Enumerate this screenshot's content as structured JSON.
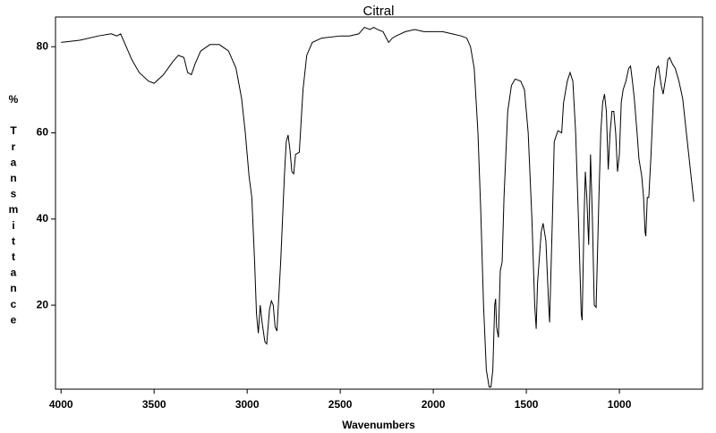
{
  "chart_data": {
    "type": "line",
    "title": "Citral",
    "xlabel": "Wavenumbers",
    "ylabel": "% Transmittance",
    "color": "#000000",
    "xlim": [
      4030,
      553
    ],
    "ylim": [
      0.5,
      86.9
    ],
    "xticks": [
      4000,
      3500,
      3000,
      2500,
      2000,
      1500,
      1000
    ],
    "yticks": [
      20,
      40,
      60,
      80
    ],
    "x": [
      4000,
      3900,
      3800,
      3730,
      3700,
      3680,
      3650,
      3620,
      3580,
      3530,
      3500,
      3450,
      3400,
      3370,
      3340,
      3320,
      3300,
      3280,
      3250,
      3200,
      3150,
      3100,
      3060,
      3030,
      3010,
      2990,
      2975,
      2960,
      2950,
      2940,
      2930,
      2920,
      2905,
      2895,
      2880,
      2870,
      2860,
      2850,
      2840,
      2820,
      2800,
      2790,
      2780,
      2770,
      2760,
      2750,
      2740,
      2720,
      2700,
      2680,
      2650,
      2600,
      2500,
      2450,
      2400,
      2370,
      2340,
      2320,
      2300,
      2270,
      2240,
      2220,
      2200,
      2150,
      2100,
      2050,
      2000,
      1950,
      1900,
      1850,
      1820,
      1800,
      1780,
      1760,
      1745,
      1730,
      1715,
      1700,
      1690,
      1680,
      1670,
      1665,
      1660,
      1650,
      1640,
      1630,
      1620,
      1600,
      1580,
      1560,
      1530,
      1510,
      1490,
      1470,
      1455,
      1447,
      1440,
      1420,
      1410,
      1395,
      1380,
      1375,
      1360,
      1350,
      1330,
      1310,
      1300,
      1280,
      1265,
      1250,
      1235,
      1220,
      1205,
      1200,
      1190,
      1183,
      1175,
      1165,
      1155,
      1145,
      1135,
      1125,
      1110,
      1100,
      1090,
      1080,
      1070,
      1060,
      1050,
      1040,
      1030,
      1020,
      1010,
      1000,
      990,
      980,
      965,
      950,
      940,
      930,
      920,
      905,
      895,
      880,
      870,
      862,
      858,
      850,
      842,
      830,
      815,
      800,
      790,
      775,
      765,
      750,
      740,
      730,
      715,
      700,
      680,
      660,
      640,
      620,
      600
    ],
    "values": [
      81,
      81.5,
      82.5,
      83,
      82.5,
      83,
      80,
      77,
      74,
      72,
      71.5,
      73.5,
      76.5,
      78,
      77.5,
      74,
      73.5,
      76,
      79,
      80.5,
      80.5,
      79,
      75,
      68,
      60,
      50,
      45,
      30,
      18,
      13.5,
      20,
      16,
      11.5,
      11,
      19,
      21,
      20,
      15,
      14,
      30,
      50,
      58,
      59.5,
      56,
      51,
      50.5,
      55,
      55.5,
      70,
      78,
      81,
      82,
      82.5,
      82.5,
      83,
      84.5,
      84,
      84.5,
      84,
      83.5,
      81,
      82,
      82.5,
      83.5,
      84,
      83.5,
      83.5,
      83.5,
      83,
      82.5,
      82,
      80,
      75,
      60,
      42,
      20,
      5,
      1,
      1,
      5,
      20,
      21.5,
      15,
      12.5,
      28,
      30,
      45,
      65,
      71,
      72.5,
      72,
      70,
      60,
      40,
      20,
      14.5,
      25,
      37,
      39,
      35,
      20,
      16,
      40,
      58,
      60.5,
      60,
      67,
      72,
      74,
      72,
      60,
      40,
      18,
      16.5,
      40,
      51,
      45,
      34,
      55,
      40,
      20,
      19.5,
      45,
      60,
      67,
      69,
      65,
      51.5,
      60,
      65,
      65,
      60,
      51,
      55,
      67,
      70,
      72,
      75,
      75.5,
      72,
      68,
      60,
      54,
      50,
      45,
      37,
      36,
      45,
      45,
      55,
      70,
      75,
      75.5,
      71,
      69,
      73,
      77,
      77.5,
      76,
      75,
      72,
      68,
      60,
      52,
      44
    ]
  }
}
